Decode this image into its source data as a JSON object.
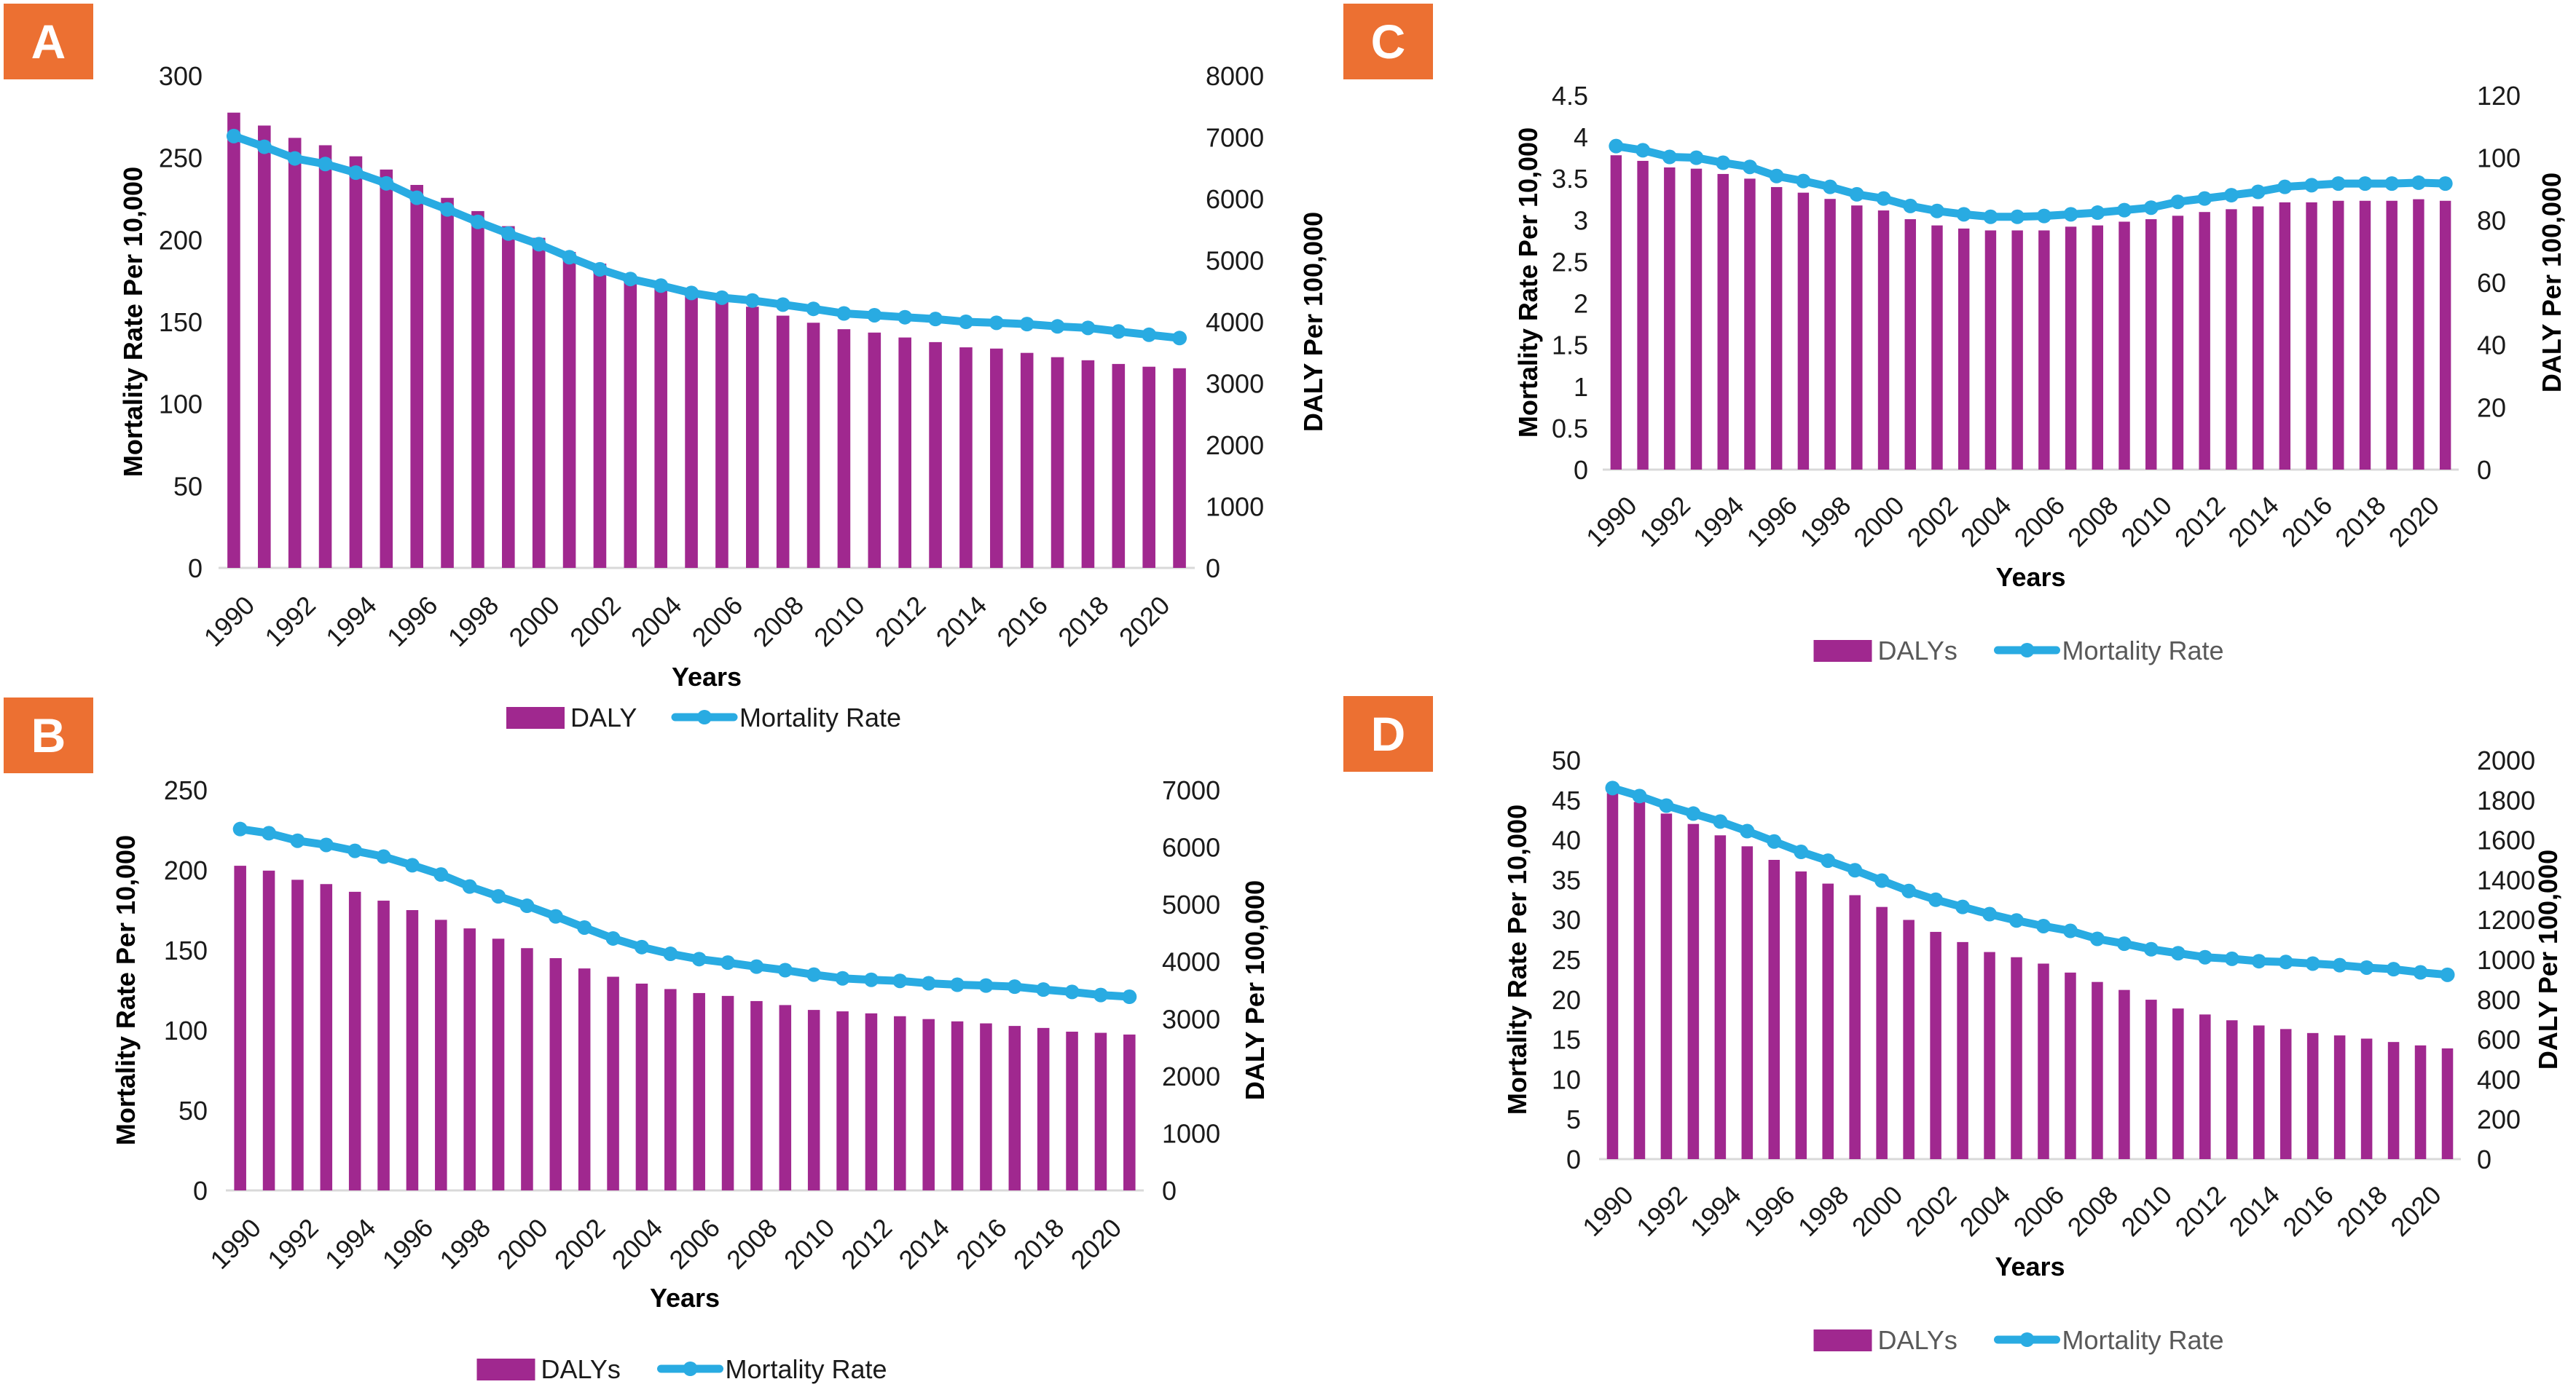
{
  "colors": {
    "bar": "#A0288F",
    "line": "#29ABE2",
    "panel_label_bg": "#EC7032",
    "axis_line": "#d9d9d9"
  },
  "chart_data": [
    {
      "id": "A",
      "panel_label": "A",
      "type": "bar+line",
      "xlabel": "Years",
      "ylabel_left": "Mortality Rate Per 10,000",
      "ylabel_right": "DALY Per 100,000",
      "ylim_left": [
        0,
        300
      ],
      "yticks_left": [
        "0",
        "50",
        "100",
        "150",
        "200",
        "250",
        "300"
      ],
      "ylim_right": [
        0,
        8000
      ],
      "yticks_right": [
        "0",
        "1000",
        "2000",
        "3000",
        "4000",
        "5000",
        "6000",
        "7000",
        "8000"
      ],
      "x": [
        1990,
        1991,
        1992,
        1993,
        1994,
        1995,
        1996,
        1997,
        1998,
        1999,
        2000,
        2001,
        2002,
        2003,
        2004,
        2005,
        2006,
        2007,
        2008,
        2009,
        2010,
        2011,
        2012,
        2013,
        2014,
        2015,
        2016,
        2017,
        2018,
        2019,
        2020,
        2021
      ],
      "xtick_labels": [
        "1990",
        "1992",
        "1994",
        "1996",
        "1998",
        "2000",
        "2002",
        "2004",
        "2006",
        "2008",
        "2010",
        "2012",
        "2014",
        "2016",
        "2018",
        "2020"
      ],
      "legend": [
        "DALY",
        "Mortality Rate"
      ],
      "legend_position": "bottom",
      "series": [
        {
          "name": "DALY",
          "type": "bar",
          "axis": "right",
          "values": [
            7400,
            7190,
            6990,
            6870,
            6690,
            6475,
            6225,
            6015,
            5800,
            5555,
            5365,
            5135,
            4945,
            4740,
            4535,
            4415,
            4335,
            4245,
            4100,
            3985,
            3880,
            3825,
            3745,
            3670,
            3585,
            3565,
            3495,
            3425,
            3375,
            3315,
            3270,
            3245
          ]
        },
        {
          "name": "Mortality Rate",
          "type": "line",
          "axis": "left",
          "values": [
            263.2,
            256.7,
            249.6,
            246.2,
            240.9,
            234.4,
            225.6,
            218.5,
            210.9,
            203.8,
            197.3,
            189.4,
            182.0,
            176.1,
            172.1,
            167.6,
            164.7,
            163.0,
            160.5,
            157.9,
            155.1,
            154.0,
            152.8,
            151.7,
            150.0,
            149.4,
            148.6,
            147.2,
            146.3,
            144.1,
            142.1,
            140.1
          ]
        }
      ]
    },
    {
      "id": "B",
      "panel_label": "B",
      "type": "bar+line",
      "xlabel": "Years",
      "ylabel_left": "Mortality Rate Per 10,000",
      "ylabel_right": "DALY Per 100,000",
      "ylim_left": [
        0,
        250
      ],
      "yticks_left": [
        "0",
        "50",
        "100",
        "150",
        "200",
        "250"
      ],
      "ylim_right": [
        0,
        7000
      ],
      "yticks_right": [
        "0",
        "1000",
        "2000",
        "3000",
        "4000",
        "5000",
        "6000",
        "7000"
      ],
      "x": [
        1990,
        1991,
        1992,
        1993,
        1994,
        1995,
        1996,
        1997,
        1998,
        1999,
        2000,
        2001,
        2002,
        2003,
        2004,
        2005,
        2006,
        2007,
        2008,
        2009,
        2010,
        2011,
        2012,
        2013,
        2014,
        2015,
        2016,
        2017,
        2018,
        2019,
        2020,
        2021
      ],
      "xtick_labels": [
        "1990",
        "1992",
        "1994",
        "1996",
        "1998",
        "2000",
        "2002",
        "2004",
        "2006",
        "2008",
        "2010",
        "2012",
        "2014",
        "2016",
        "2018",
        "2020"
      ],
      "legend": [
        "DALYs",
        "Mortality Rate"
      ],
      "legend_position": "bottom",
      "series": [
        {
          "name": "DALYs",
          "type": "bar",
          "axis": "right",
          "values": [
            5675,
            5590,
            5430,
            5355,
            5220,
            5065,
            4900,
            4730,
            4580,
            4400,
            4235,
            4060,
            3880,
            3735,
            3615,
            3520,
            3450,
            3400,
            3310,
            3240,
            3155,
            3130,
            3095,
            3045,
            2995,
            2955,
            2920,
            2875,
            2840,
            2775,
            2755,
            2725
          ]
        },
        {
          "name": "Mortality Rate",
          "type": "line",
          "axis": "left",
          "values": [
            225.6,
            223.0,
            218.3,
            215.7,
            212.0,
            208.4,
            203.0,
            197.2,
            189.7,
            183.6,
            177.7,
            171.1,
            164.1,
            157.3,
            151.9,
            147.7,
            144.4,
            142.2,
            139.7,
            137.5,
            134.7,
            132.4,
            131.5,
            130.8,
            129.3,
            128.4,
            127.9,
            127.2,
            125.4,
            123.9,
            122.0,
            120.9
          ]
        }
      ]
    },
    {
      "id": "C",
      "panel_label": "C",
      "type": "bar+line",
      "xlabel": "Years",
      "ylabel_left": "Mortality Rate Per 10,000",
      "ylabel_right": "DALY Per 100,000",
      "ylim_left": [
        0,
        4.5
      ],
      "yticks_left": [
        "0",
        "0.5",
        "1",
        "1.5",
        "2",
        "2.5",
        "3",
        "3.5",
        "4",
        "4.5"
      ],
      "ylim_right": [
        0,
        120
      ],
      "yticks_right": [
        "0",
        "20",
        "40",
        "60",
        "80",
        "100",
        "120"
      ],
      "x": [
        1990,
        1991,
        1992,
        1993,
        1994,
        1995,
        1996,
        1997,
        1998,
        1999,
        2000,
        2001,
        2002,
        2003,
        2004,
        2005,
        2006,
        2007,
        2008,
        2009,
        2010,
        2011,
        2012,
        2013,
        2014,
        2015,
        2016,
        2017,
        2018,
        2019,
        2020,
        2021
      ],
      "xtick_labels": [
        "1990",
        "1992",
        "1994",
        "1996",
        "1998",
        "2000",
        "2002",
        "2004",
        "2006",
        "2008",
        "2010",
        "2012",
        "2014",
        "2016",
        "2018",
        "2020"
      ],
      "legend": [
        "DALYs",
        "Mortality Rate"
      ],
      "legend_position": "bottom",
      "series": [
        {
          "name": "DALYs",
          "type": "bar",
          "axis": "right",
          "values": [
            100.8,
            99.0,
            96.9,
            96.5,
            94.8,
            93.3,
            90.6,
            88.8,
            86.8,
            84.7,
            83.1,
            80.3,
            78.3,
            77.3,
            76.7,
            76.7,
            76.7,
            77.9,
            78.3,
            79.5,
            80.3,
            81.4,
            82.6,
            83.5,
            84.4,
            85.7,
            85.7,
            86.2,
            86.2,
            86.2,
            86.7,
            86.2
          ]
        },
        {
          "name": "Mortality Rate",
          "type": "line",
          "axis": "left",
          "values": [
            3.89,
            3.84,
            3.76,
            3.75,
            3.69,
            3.64,
            3.53,
            3.47,
            3.4,
            3.31,
            3.26,
            3.17,
            3.11,
            3.07,
            3.04,
            3.04,
            3.05,
            3.07,
            3.09,
            3.12,
            3.15,
            3.22,
            3.26,
            3.3,
            3.34,
            3.4,
            3.42,
            3.44,
            3.44,
            3.44,
            3.45,
            3.44
          ]
        }
      ]
    },
    {
      "id": "D",
      "panel_label": "D",
      "type": "bar+line",
      "xlabel": "Years",
      "ylabel_left": "Mortality Rate Per 10,000",
      "ylabel_right": "DALY Per 100,000",
      "ylim_left": [
        0,
        50
      ],
      "yticks_left": [
        "0",
        "5",
        "10",
        "15",
        "20",
        "25",
        "30",
        "35",
        "40",
        "45",
        "50"
      ],
      "ylim_right": [
        0,
        2000
      ],
      "yticks_right": [
        "0",
        "200",
        "400",
        "600",
        "800",
        "1000",
        "1200",
        "1400",
        "1600",
        "1800",
        "2000"
      ],
      "x": [
        1990,
        1991,
        1992,
        1993,
        1994,
        1995,
        1996,
        1997,
        1998,
        1999,
        2000,
        2001,
        2002,
        2003,
        2004,
        2005,
        2006,
        2007,
        2008,
        2009,
        2010,
        2011,
        2012,
        2013,
        2014,
        2015,
        2016,
        2017,
        2018,
        2019,
        2020,
        2021
      ],
      "xtick_labels": [
        "1990",
        "1992",
        "1994",
        "1996",
        "1998",
        "2000",
        "2002",
        "2004",
        "2006",
        "2008",
        "2010",
        "2012",
        "2014",
        "2016",
        "2018",
        "2020"
      ],
      "legend": [
        "DALYs",
        "Mortality Rate"
      ],
      "legend_position": "bottom",
      "series": [
        {
          "name": "DALYs",
          "type": "bar",
          "axis": "right",
          "values": [
            1835,
            1790,
            1732,
            1680,
            1623,
            1568,
            1500,
            1442,
            1381,
            1323,
            1264,
            1199,
            1139,
            1088,
            1038,
            1012,
            980,
            935,
            888,
            848,
            799,
            755,
            725,
            696,
            670,
            652,
            632,
            620,
            604,
            587,
            570,
            555
          ]
        },
        {
          "name": "Mortality Rate",
          "type": "line",
          "axis": "left",
          "values": [
            46.5,
            45.5,
            44.3,
            43.3,
            42.3,
            41.1,
            39.8,
            38.5,
            37.4,
            36.2,
            34.9,
            33.6,
            32.5,
            31.6,
            30.7,
            29.9,
            29.2,
            28.6,
            27.6,
            27.0,
            26.3,
            25.8,
            25.3,
            25.1,
            24.8,
            24.7,
            24.5,
            24.3,
            24.0,
            23.8,
            23.4,
            23.1
          ]
        }
      ]
    }
  ]
}
